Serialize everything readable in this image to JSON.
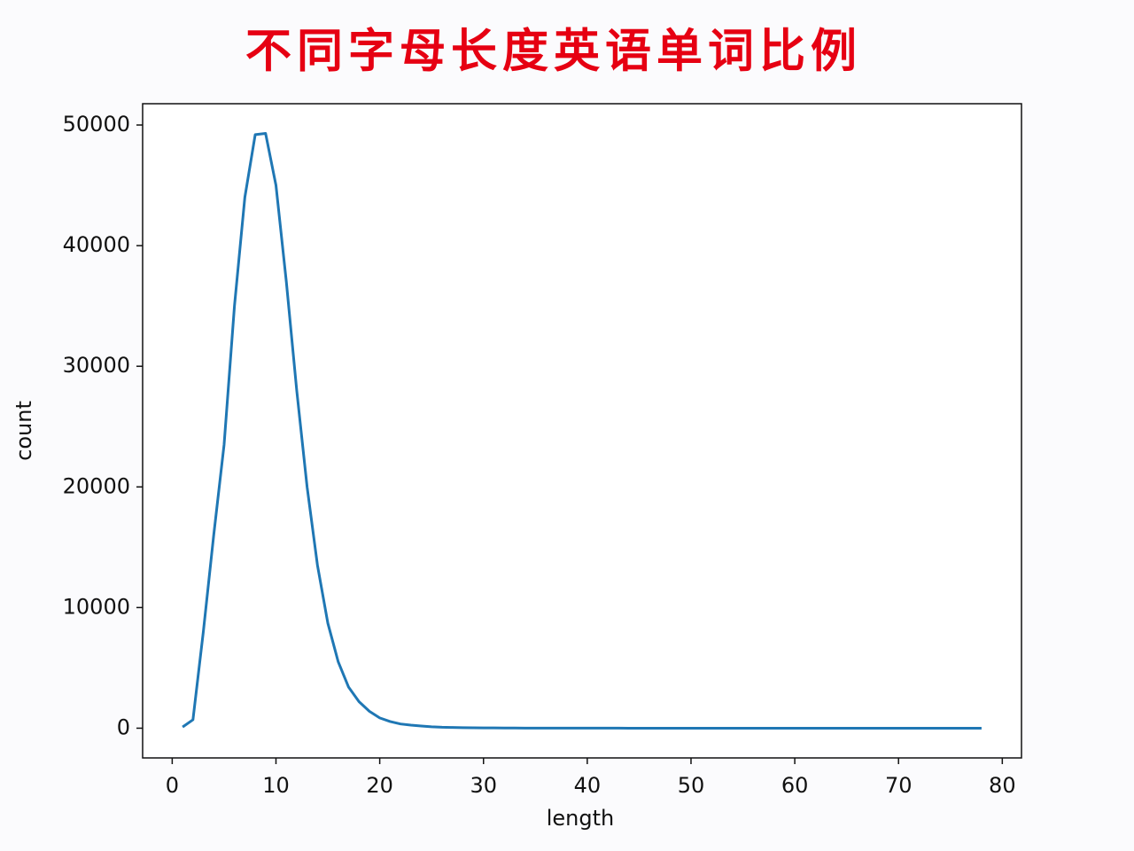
{
  "chart_data": {
    "type": "line",
    "title": "不同字母长度英语单词比例",
    "x_label": "length",
    "y_label": "count",
    "color": "#1f77b4",
    "x": [
      1,
      2,
      3,
      4,
      5,
      6,
      7,
      8,
      9,
      10,
      11,
      12,
      13,
      14,
      15,
      16,
      17,
      18,
      19,
      20,
      21,
      22,
      23,
      24,
      25,
      26,
      27,
      28,
      29,
      30,
      31,
      32,
      33,
      34,
      35,
      36,
      37,
      38,
      39,
      40,
      41,
      42,
      43,
      44,
      45,
      46,
      47,
      48,
      49,
      50,
      51,
      52,
      53,
      54,
      55,
      56,
      57,
      58,
      59,
      60,
      61,
      62,
      63,
      64,
      65,
      66,
      67,
      68,
      69,
      70,
      71,
      72,
      73,
      74,
      75,
      76,
      77,
      78
    ],
    "values": [
      100,
      700,
      8000,
      16000,
      23500,
      35000,
      44000,
      49200,
      49300,
      45000,
      37000,
      28000,
      20000,
      13500,
      8700,
      5500,
      3400,
      2200,
      1400,
      850,
      550,
      350,
      250,
      180,
      120,
      80,
      60,
      45,
      35,
      25,
      20,
      15,
      12,
      10,
      8,
      6,
      5,
      4,
      3,
      3,
      2,
      2,
      2,
      1,
      1,
      1,
      1,
      1,
      1,
      1,
      1,
      1,
      1,
      1,
      1,
      1,
      1,
      1,
      1,
      1,
      1,
      1,
      1,
      1,
      1,
      1,
      1,
      1,
      1,
      1,
      1,
      1,
      1,
      1,
      1,
      1,
      1,
      1
    ],
    "xlim": [
      -2.85,
      81.85
    ],
    "ylim": [
      -2465,
      51765
    ],
    "xticks": [
      0,
      10,
      20,
      30,
      40,
      50,
      60,
      70,
      80
    ],
    "yticks": [
      0,
      10000,
      20000,
      30000,
      40000,
      50000
    ]
  }
}
